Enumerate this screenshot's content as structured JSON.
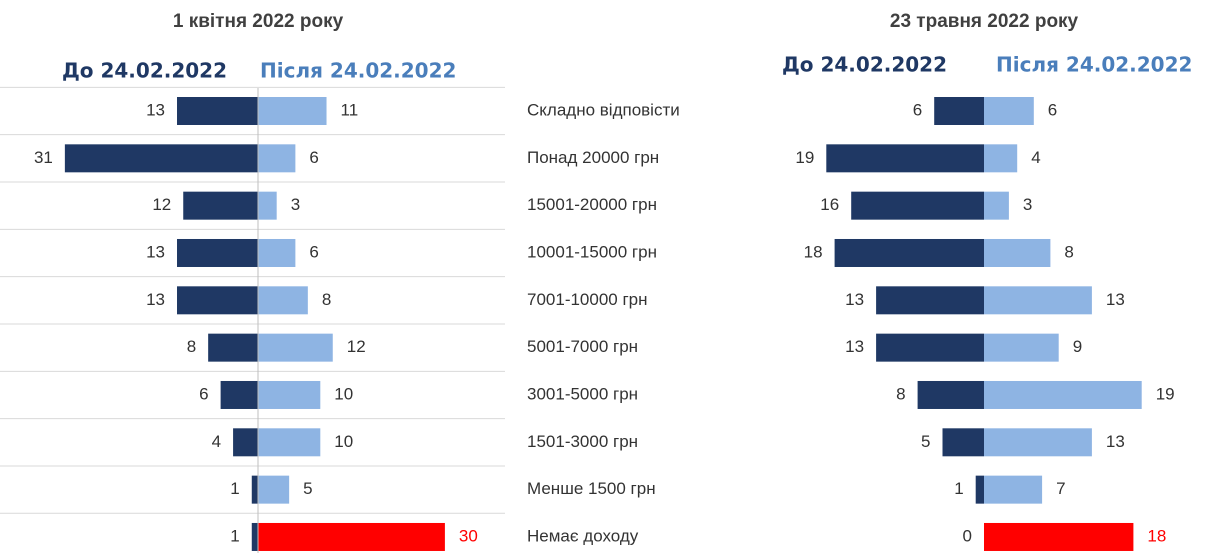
{
  "chart_data": [
    {
      "type": "butterfly",
      "title": "1 квітня 2022 року",
      "categories": [
        "Складно відповісти",
        "Понад 20000 грн",
        "15001-20000 грн",
        "10001-15000 грн",
        "7001-10000 грн",
        "5001-7000 грн",
        "3001-5000 грн",
        "1501-3000 грн",
        "Менше 1500 грн",
        "Немає доходу"
      ],
      "series": [
        {
          "name": "До 24.02.2022",
          "color": "#1f3864",
          "values": [
            13,
            31,
            12,
            13,
            13,
            8,
            6,
            4,
            1,
            1
          ]
        },
        {
          "name": "Після 24.02.2022",
          "color": "#8eb4e3",
          "values": [
            11,
            6,
            3,
            6,
            8,
            12,
            10,
            10,
            5,
            30
          ],
          "colors": [
            "#8eb4e3",
            "#8eb4e3",
            "#8eb4e3",
            "#8eb4e3",
            "#8eb4e3",
            "#8eb4e3",
            "#8eb4e3",
            "#8eb4e3",
            "#8eb4e3",
            "#ff0000"
          ]
        }
      ]
    },
    {
      "type": "butterfly",
      "title": "23 травня 2022 року",
      "series": [
        {
          "name": "До 24.02.2022",
          "color": "#1f3864",
          "values": [
            6,
            19,
            16,
            18,
            13,
            13,
            8,
            5,
            1,
            0
          ]
        },
        {
          "name": "Після 24.02.2022",
          "color": "#8eb4e3",
          "values": [
            6,
            4,
            3,
            8,
            13,
            9,
            19,
            13,
            7,
            18
          ],
          "colors": [
            "#8eb4e3",
            "#8eb4e3",
            "#8eb4e3",
            "#8eb4e3",
            "#8eb4e3",
            "#8eb4e3",
            "#8eb4e3",
            "#8eb4e3",
            "#8eb4e3",
            "#ff0000"
          ]
        }
      ]
    }
  ]
}
